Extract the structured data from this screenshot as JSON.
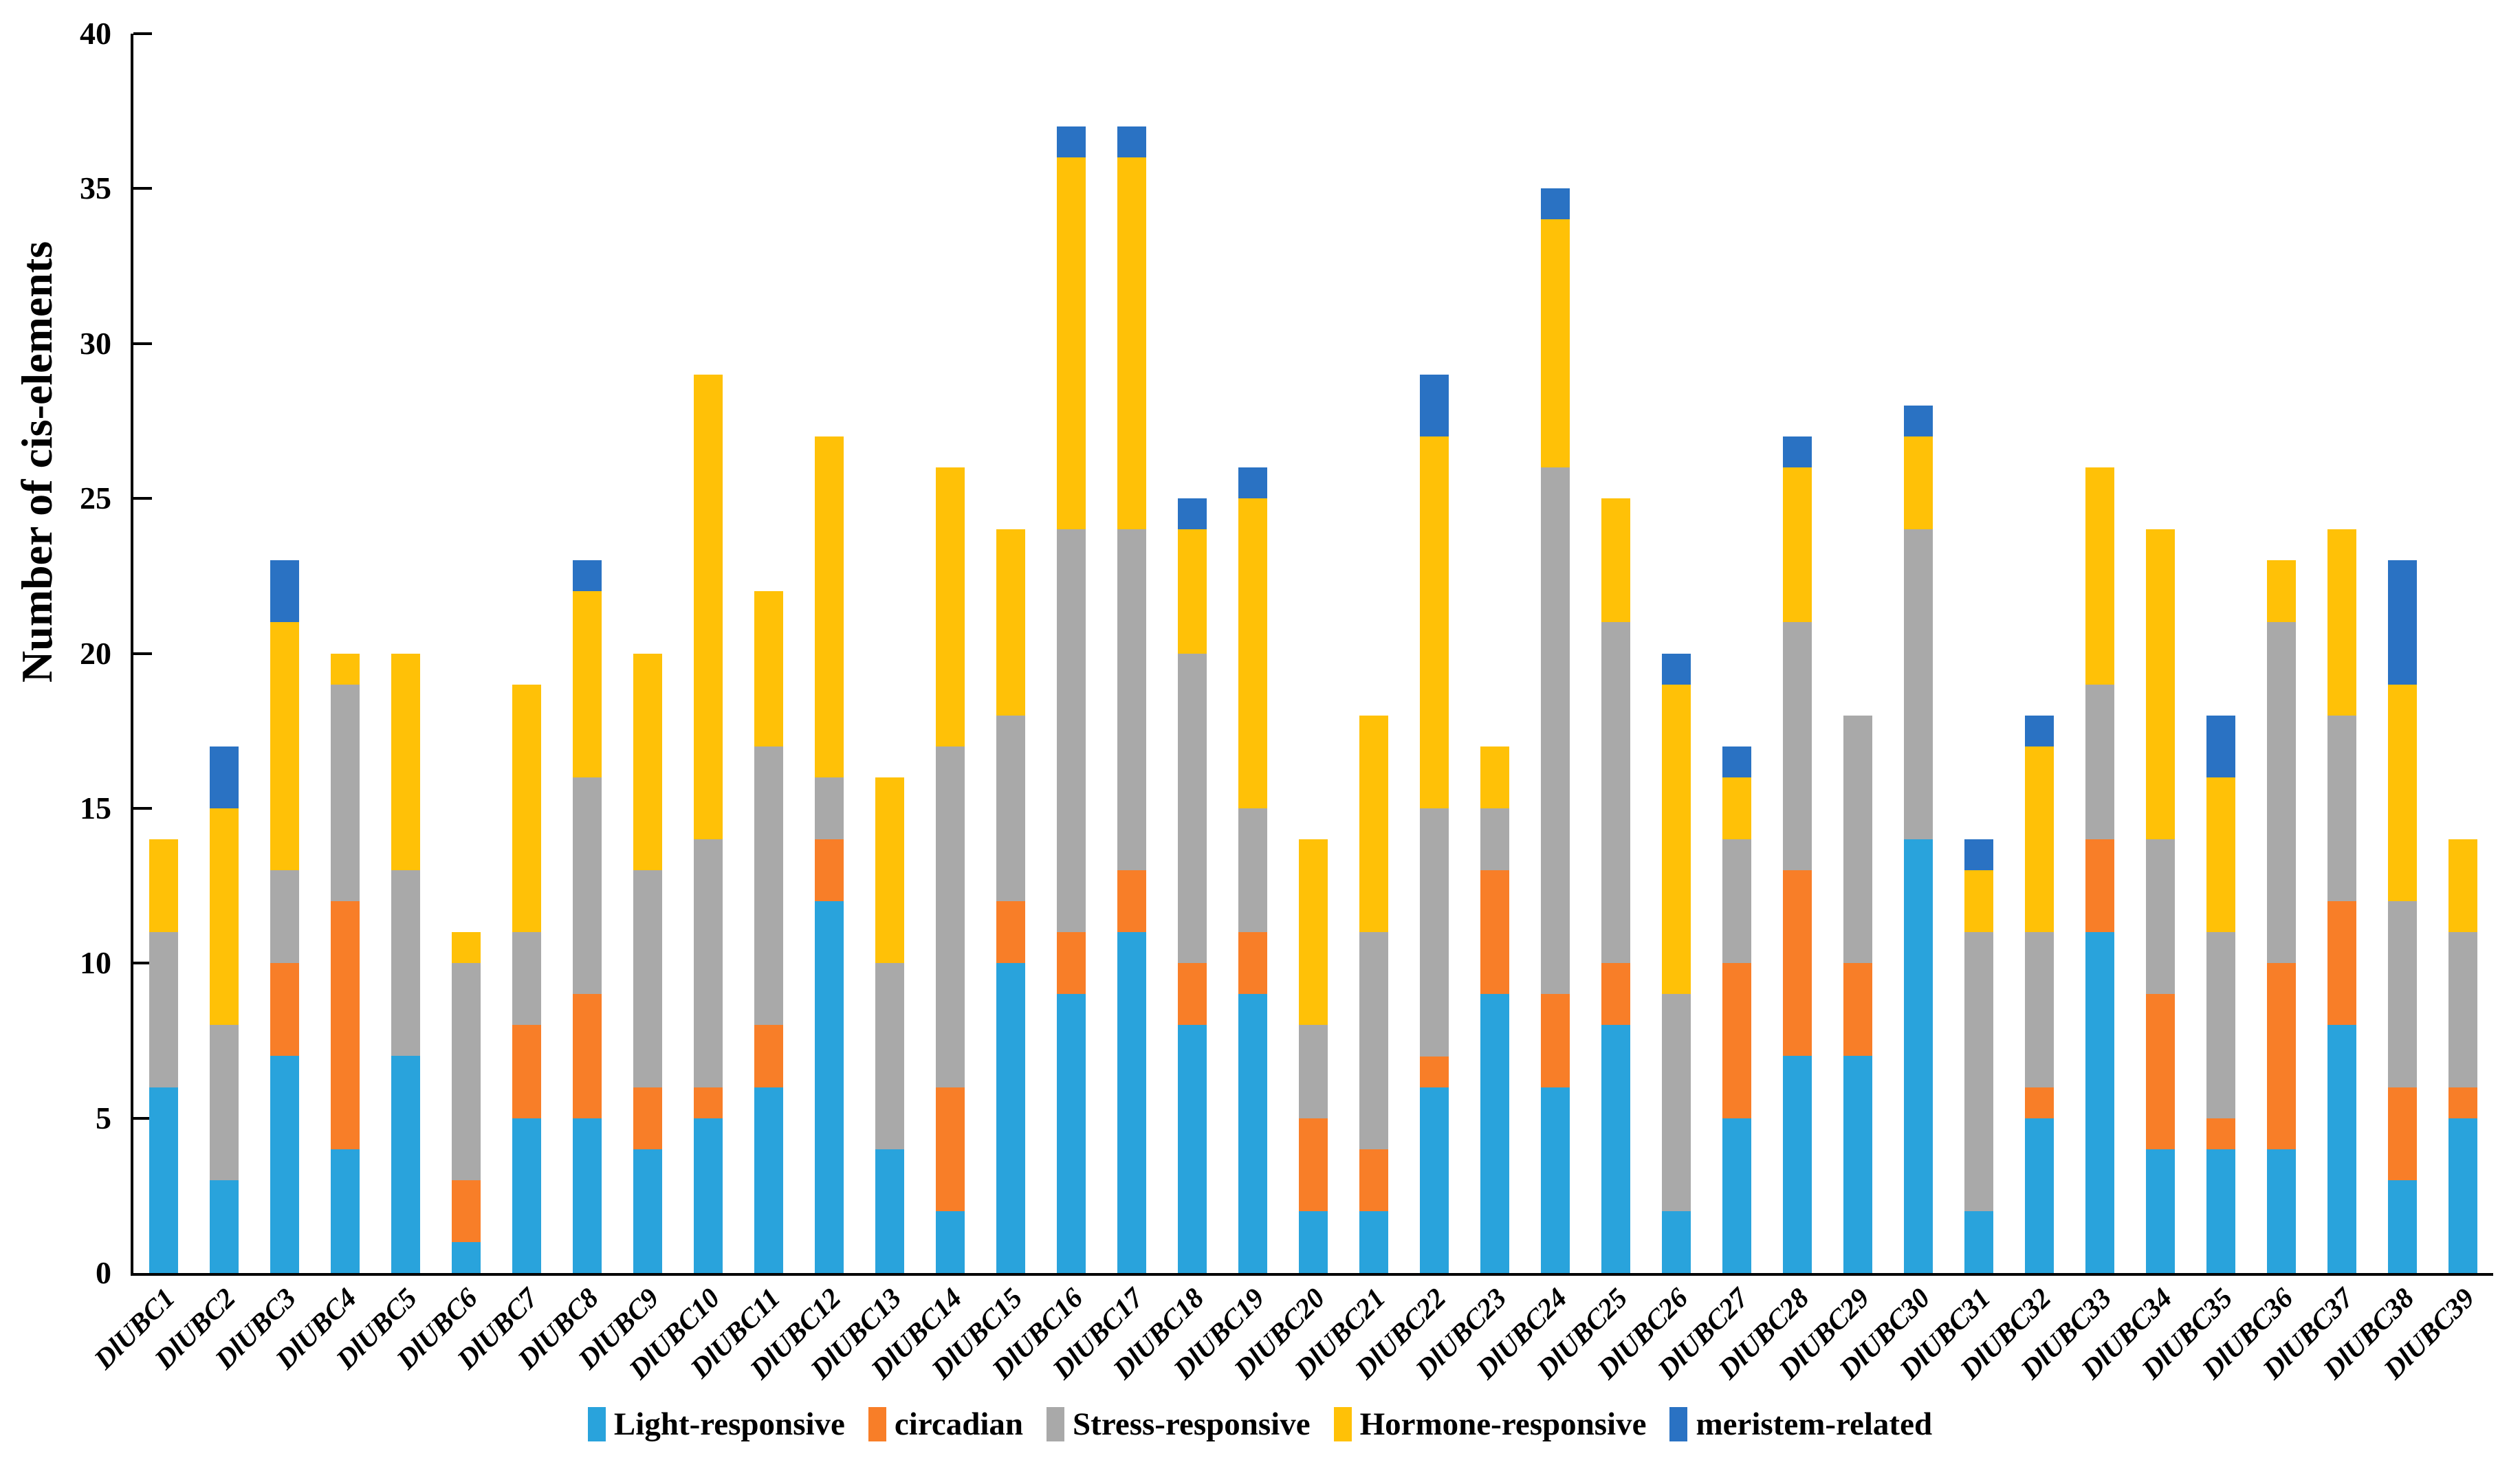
{
  "chart_data": {
    "type": "bar",
    "stacked": true,
    "title": "",
    "xlabel": "",
    "ylabel": "Number of cis-elements",
    "ylim": [
      0,
      40
    ],
    "yticks": [
      0,
      5,
      10,
      15,
      20,
      25,
      30,
      35,
      40
    ],
    "grid": false,
    "legend_position": "bottom",
    "categories": [
      "DlUBC1",
      "DlUBC2",
      "DlUBC3",
      "DlUBC4",
      "DlUBC5",
      "DlUBC6",
      "DlUBC7",
      "DlUBC8",
      "DlUBC9",
      "DlUBC10",
      "DlUBC11",
      "DlUBC12",
      "DlUBC13",
      "DlUBC14",
      "DlUBC15",
      "DlUBC16",
      "DlUBC17",
      "DlUBC18",
      "DlUBC19",
      "DlUBC20",
      "DlUBC21",
      "DlUBC22",
      "DlUBC23",
      "DlUBC24",
      "DlUBC25",
      "DlUBC26",
      "DlUBC27",
      "DlUBC28",
      "DlUBC29",
      "DlUBC30",
      "DlUBC31",
      "DlUBC32",
      "DlUBC33",
      "DlUBC34",
      "DlUBC35",
      "DlUBC36",
      "DlUBC37",
      "DlUBC38",
      "DlUBC39"
    ],
    "series": [
      {
        "name": "Light-responsive",
        "color": "#29A3DC",
        "values": [
          6,
          3,
          7,
          4,
          7,
          1,
          5,
          5,
          4,
          5,
          6,
          12,
          4,
          2,
          10,
          9,
          11,
          8,
          9,
          2,
          2,
          6,
          9,
          6,
          8,
          2,
          5,
          7,
          7,
          14,
          2,
          5,
          11,
          4,
          4,
          4,
          8,
          3,
          5
        ]
      },
      {
        "name": "circadian",
        "color": "#F87E28",
        "values": [
          0,
          0,
          3,
          8,
          0,
          2,
          3,
          4,
          2,
          1,
          2,
          2,
          0,
          4,
          2,
          2,
          2,
          2,
          2,
          3,
          2,
          1,
          4,
          3,
          2,
          0,
          5,
          6,
          3,
          0,
          0,
          1,
          3,
          5,
          1,
          6,
          4,
          3,
          1
        ]
      },
      {
        "name": "Stress-responsive",
        "color": "#A9A9A9",
        "values": [
          5,
          5,
          3,
          7,
          6,
          7,
          3,
          7,
          7,
          8,
          9,
          2,
          6,
          11,
          6,
          13,
          11,
          10,
          4,
          3,
          7,
          8,
          2,
          17,
          11,
          7,
          4,
          8,
          8,
          10,
          9,
          5,
          5,
          5,
          6,
          11,
          6,
          6,
          5
        ]
      },
      {
        "name": "Hormone-responsive",
        "color": "#FFC107",
        "values": [
          3,
          7,
          8,
          1,
          7,
          1,
          8,
          6,
          7,
          15,
          5,
          11,
          6,
          9,
          6,
          12,
          12,
          4,
          10,
          6,
          7,
          12,
          2,
          8,
          4,
          10,
          2,
          5,
          0,
          3,
          2,
          6,
          7,
          10,
          5,
          2,
          6,
          7,
          3
        ]
      },
      {
        "name": "meristem-related",
        "color": "#2A72C3",
        "values": [
          0,
          2,
          2,
          0,
          0,
          0,
          0,
          1,
          0,
          0,
          0,
          0,
          0,
          0,
          0,
          1,
          1,
          1,
          1,
          0,
          0,
          2,
          0,
          1,
          0,
          1,
          1,
          1,
          0,
          1,
          1,
          1,
          0,
          0,
          2,
          0,
          0,
          4,
          0
        ]
      }
    ]
  }
}
